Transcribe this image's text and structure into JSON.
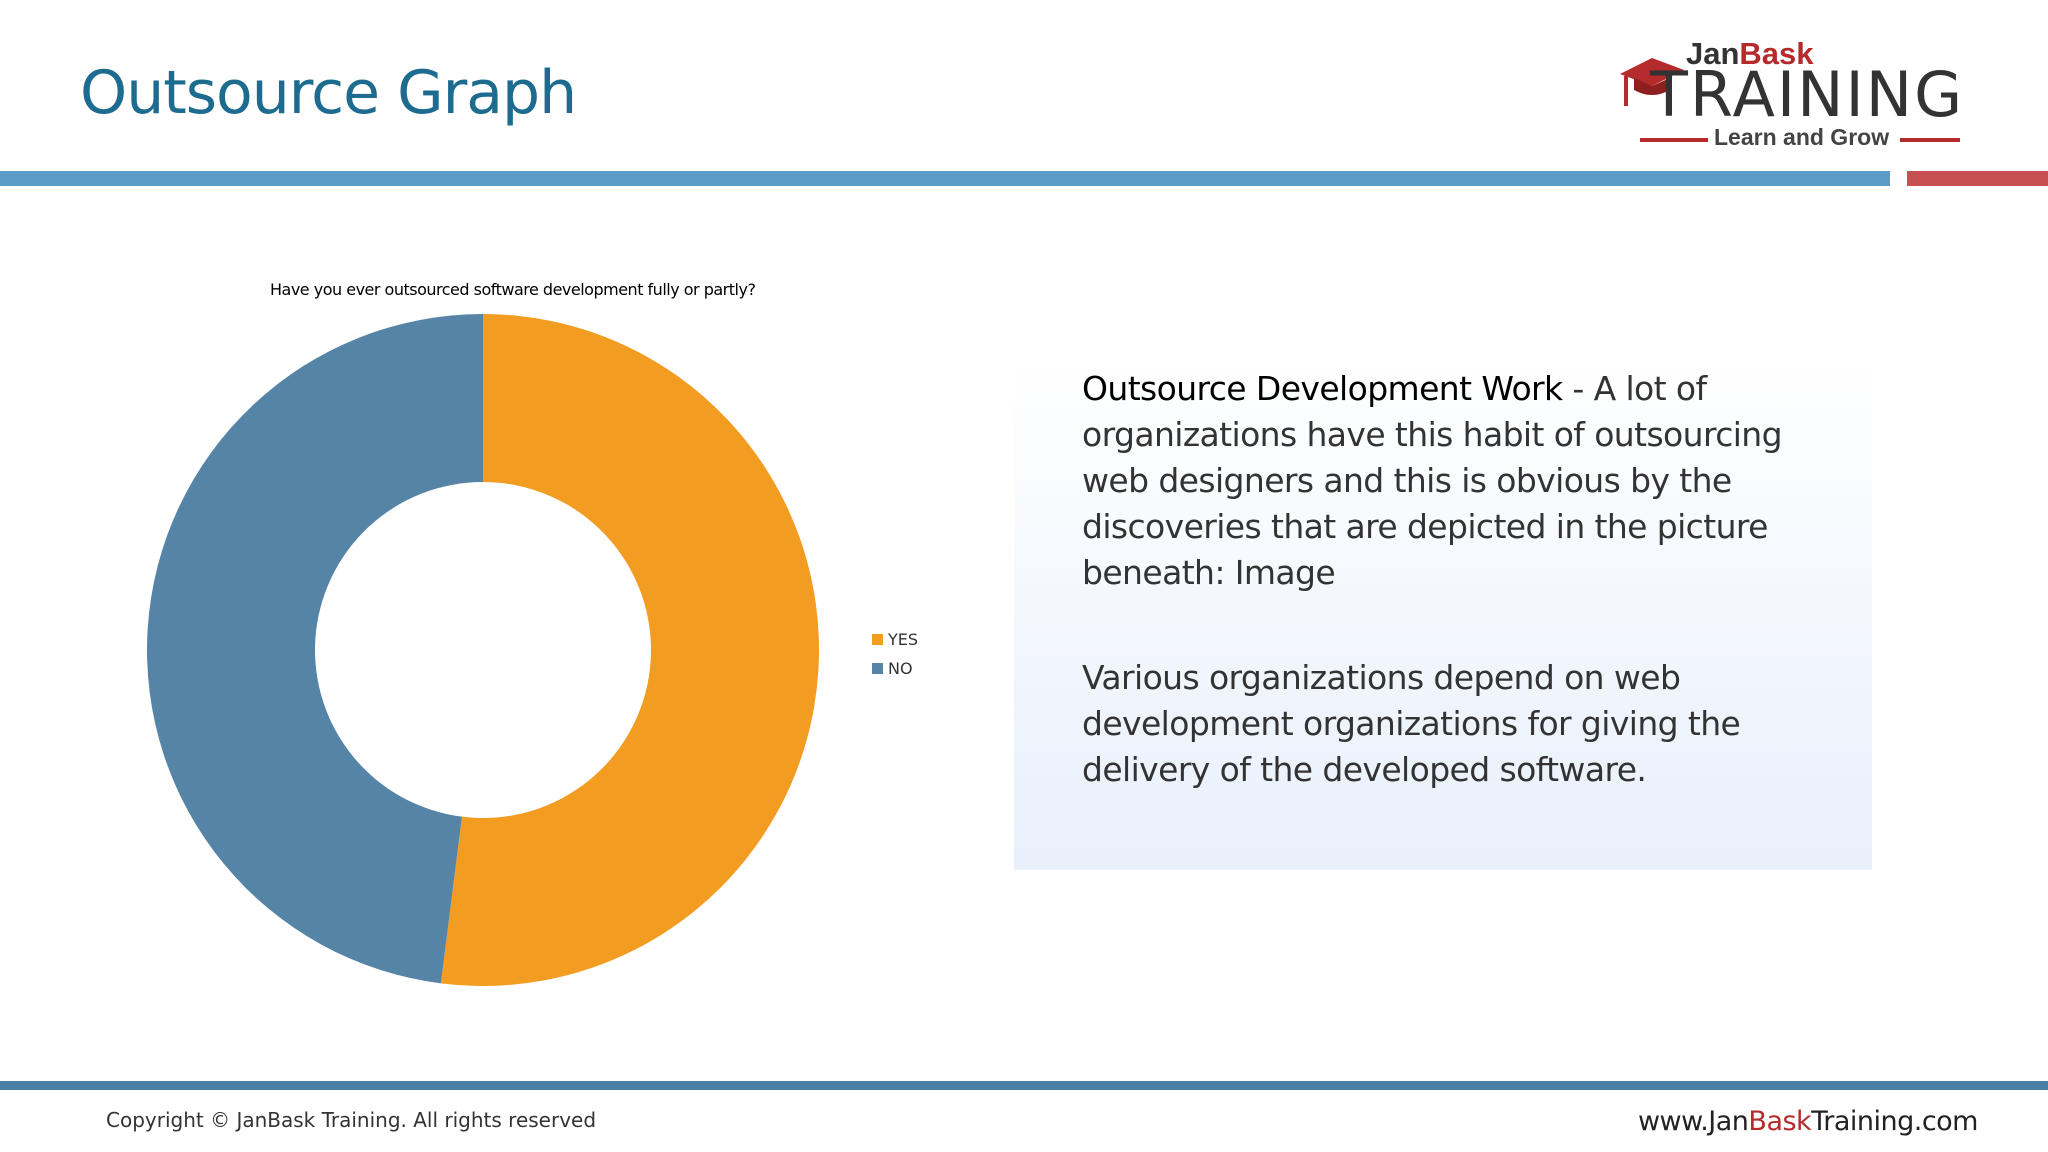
{
  "slide": {
    "title": "Outsource Graph"
  },
  "logo": {
    "top_part1": "Jan",
    "top_part2": "Bask",
    "main": "TRAINING",
    "tagline": "Learn and Grow"
  },
  "chart_data": {
    "type": "pie",
    "style": "donut",
    "title": "Have you ever outsourced software development fully or partly?",
    "categories": [
      "YES",
      "NO"
    ],
    "values": [
      52,
      48
    ],
    "colors": [
      "#f39c22",
      "#5684a6"
    ],
    "legend": "right",
    "start_angle_deg": 0,
    "direction": "clockwise"
  },
  "text_panel": {
    "para1_heading": "Outsource Development Work",
    "para1_body": " - A lot of organizations have this habit of outsourcing web designers and this is obvious by the discoveries that are depicted in the picture beneath: Image",
    "para2": "Various organizations depend on web development organizations for giving the delivery of the developed software."
  },
  "footer": {
    "copyright": "Copyright © JanBask Training. All rights reserved",
    "url_part1": "www.Jan",
    "url_part2": "Bask",
    "url_part3": "Training.com"
  },
  "colors": {
    "title_blue": "#1d6b8f",
    "bar_blue": "#5b9bc8",
    "bar_red": "#c85050",
    "brand_red": "#b52a2a"
  }
}
